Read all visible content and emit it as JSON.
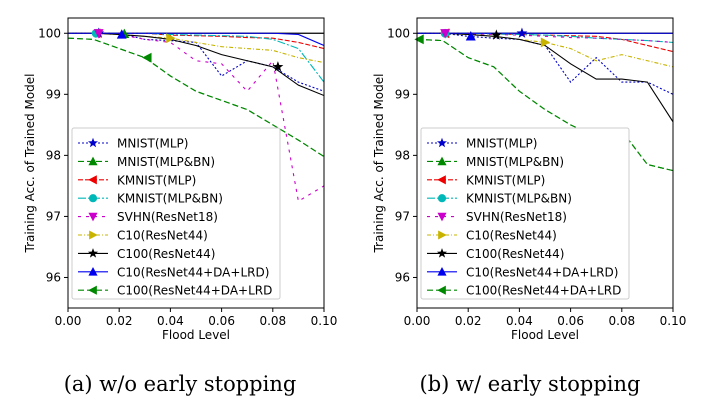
{
  "chart_data": [
    {
      "type": "line",
      "caption": "(a) w/o early stopping",
      "xlabel": "Flood Level",
      "ylabel": "Training Acc. of Trained Model",
      "xlim": [
        0,
        0.1
      ],
      "ylim": [
        95.5,
        100.25
      ],
      "xticks": [
        "0.00",
        "0.02",
        "0.04",
        "0.06",
        "0.08",
        "0.10"
      ],
      "yticks": [
        "96",
        "97",
        "98",
        "99",
        "100"
      ],
      "reference_line": 100,
      "legend_position": "lower-left",
      "series": [
        {
          "name": "MNIST(MLP)",
          "color": "#0000cc",
          "dash": "2,2",
          "marker": "star",
          "x": [
            0,
            0.01,
            0.02,
            0.03,
            0.04,
            0.05,
            0.06,
            0.07,
            0.08,
            0.09,
            0.1
          ],
          "y": [
            100,
            100,
            100,
            99.9,
            99.88,
            99.85,
            99.3,
            99.55,
            99.45,
            99.2,
            99.05
          ]
        },
        {
          "name": "MNIST(MLP&BN)",
          "color": "#008800",
          "dash": "6,3",
          "marker": "triangle-up",
          "x": [
            0,
            0.01,
            0.02,
            0.03,
            0.04,
            0.05,
            0.06,
            0.07,
            0.08,
            0.09,
            0.1
          ],
          "y": [
            99.92,
            99.9,
            99.75,
            99.6,
            99.3,
            99.05,
            98.9,
            98.75,
            98.5,
            98.25,
            97.98
          ]
        },
        {
          "name": "KMNIST(MLP)",
          "color": "#ee0000",
          "dash": "5,2",
          "marker": "triangle-left",
          "x": [
            0,
            0.01,
            0.02,
            0.03,
            0.04,
            0.05,
            0.06,
            0.07,
            0.08,
            0.09,
            0.1
          ],
          "y": [
            100,
            100,
            100,
            100,
            99.97,
            99.96,
            99.95,
            99.93,
            99.92,
            99.85,
            99.75
          ]
        },
        {
          "name": "KMNIST(MLP&BN)",
          "color": "#00b8b8",
          "dash": "8,2,2,2",
          "marker": "circle",
          "x": [
            0,
            0.01,
            0.02,
            0.03,
            0.04,
            0.05,
            0.06,
            0.07,
            0.08,
            0.09,
            0.1
          ],
          "y": [
            100,
            100,
            100,
            100,
            99.98,
            99.97,
            99.96,
            99.95,
            99.9,
            99.75,
            99.2
          ]
        },
        {
          "name": "SVHN(ResNet18)",
          "color": "#cc00cc",
          "dash": "3,5",
          "marker": "triangle-down",
          "x": [
            0,
            0.01,
            0.02,
            0.03,
            0.04,
            0.05,
            0.06,
            0.07,
            0.08,
            0.09,
            0.1
          ],
          "y": [
            100,
            100,
            99.98,
            99.9,
            99.85,
            99.55,
            99.5,
            99.05,
            99.55,
            97.25,
            97.5
          ]
        },
        {
          "name": "C10(ResNet44)",
          "color": "#c8b400",
          "dash": "4,2,1,2",
          "marker": "triangle-right",
          "x": [
            0,
            0.01,
            0.02,
            0.03,
            0.04,
            0.05,
            0.06,
            0.07,
            0.08,
            0.09,
            0.1
          ],
          "y": [
            100,
            100,
            99.98,
            99.95,
            99.92,
            99.85,
            99.78,
            99.75,
            99.72,
            99.6,
            99.52
          ]
        },
        {
          "name": "C100(ResNet44)",
          "color": "#000000",
          "dash": "",
          "marker": "star",
          "x": [
            0,
            0.01,
            0.02,
            0.03,
            0.04,
            0.05,
            0.06,
            0.07,
            0.08,
            0.09,
            0.1
          ],
          "y": [
            100,
            100,
            99.98,
            99.95,
            99.9,
            99.8,
            99.65,
            99.55,
            99.45,
            99.15,
            98.98
          ]
        },
        {
          "name": "C10(ResNet44+DA+LRD)",
          "color": "#0000ee",
          "dash": "",
          "marker": "triangle-up",
          "x": [
            0,
            0.01,
            0.02,
            0.03,
            0.04,
            0.05,
            0.06,
            0.07,
            0.08,
            0.09,
            0.1
          ],
          "y": [
            100,
            100,
            100,
            100,
            100,
            100,
            100,
            100,
            100,
            99.98,
            99.8
          ]
        },
        {
          "name": "C100(ResNet44+DA+LRD",
          "color": "#008800",
          "dash": "6,3",
          "marker": "triangle-left",
          "x": [
            0,
            0.01,
            0.02,
            0.03,
            0.04,
            0.05,
            0.06,
            0.07,
            0.08,
            0.09,
            0.1
          ],
          "y": [
            99.92,
            99.9,
            99.75,
            99.6,
            99.3,
            99.05,
            98.9,
            98.75,
            98.5,
            98.25,
            97.98
          ]
        }
      ],
      "markers": [
        {
          "series": 0,
          "x": 0.012,
          "y": 100
        },
        {
          "series": 1,
          "x": 0.022,
          "y": 99.99
        },
        {
          "series": 2,
          "x": 0.011,
          "y": 100
        },
        {
          "series": 3,
          "x": 0.011,
          "y": 100
        },
        {
          "series": 4,
          "x": 0.012,
          "y": 100
        },
        {
          "series": 5,
          "x": 0.04,
          "y": 99.92
        },
        {
          "series": 6,
          "x": 0.082,
          "y": 99.45
        },
        {
          "series": 7,
          "x": 0.021,
          "y": 99.98
        },
        {
          "series": 8,
          "x": 0.031,
          "y": 99.6
        }
      ]
    },
    {
      "type": "line",
      "caption": "(b) w/ early stopping",
      "xlabel": "Flood Level",
      "ylabel": "Training Acc. of Trained Model",
      "xlim": [
        0,
        0.1
      ],
      "ylim": [
        95.5,
        100.25
      ],
      "xticks": [
        "0.00",
        "0.02",
        "0.04",
        "0.06",
        "0.08",
        "0.10"
      ],
      "yticks": [
        "96",
        "97",
        "98",
        "99",
        "100"
      ],
      "reference_line": 100,
      "legend_position": "lower-left",
      "series": [
        {
          "name": "MNIST(MLP)",
          "color": "#0000cc",
          "dash": "2,2",
          "marker": "star",
          "x": [
            0,
            0.01,
            0.02,
            0.03,
            0.04,
            0.05,
            0.06,
            0.07,
            0.08,
            0.09,
            0.1
          ],
          "y": [
            100,
            100,
            99.95,
            99.92,
            99.9,
            99.8,
            99.2,
            99.6,
            99.2,
            99.2,
            99.0
          ]
        },
        {
          "name": "MNIST(MLP&BN)",
          "color": "#008800",
          "dash": "6,3",
          "marker": "triangle-up",
          "x": [
            0,
            0.01,
            0.02,
            0.03,
            0.04,
            0.05,
            0.06,
            0.07,
            0.08,
            0.09,
            0.1
          ],
          "y": [
            99.9,
            99.88,
            99.6,
            99.45,
            99.05,
            98.75,
            98.5,
            98.3,
            98.4,
            97.85,
            97.75
          ]
        },
        {
          "name": "KMNIST(MLP)",
          "color": "#ee0000",
          "dash": "5,2",
          "marker": "triangle-left",
          "x": [
            0,
            0.01,
            0.02,
            0.03,
            0.04,
            0.05,
            0.06,
            0.07,
            0.08,
            0.09,
            0.1
          ],
          "y": [
            100,
            100,
            100,
            99.99,
            99.98,
            99.97,
            99.96,
            99.95,
            99.9,
            99.8,
            99.7
          ]
        },
        {
          "name": "KMNIST(MLP&BN)",
          "color": "#00b8b8",
          "dash": "8,2,2,2",
          "marker": "circle",
          "x": [
            0,
            0.01,
            0.02,
            0.03,
            0.04,
            0.05,
            0.06,
            0.07,
            0.08,
            0.09,
            0.1
          ],
          "y": [
            100,
            100,
            100,
            99.99,
            99.98,
            99.97,
            99.95,
            99.92,
            99.9,
            99.88,
            99.85
          ]
        },
        {
          "name": "SVHN(ResNet18)",
          "color": "#cc00cc",
          "dash": "3,5",
          "marker": "triangle-down",
          "x": [
            0,
            0.01,
            0.02,
            0.03,
            0.04,
            0.05,
            0.06,
            0.07,
            0.08,
            0.09,
            0.1
          ],
          "y": [
            100,
            100,
            99.99,
            99.98,
            99.97,
            99.95,
            99.93,
            99.92,
            99.9,
            99.88,
            99.85
          ]
        },
        {
          "name": "C10(ResNet44)",
          "color": "#c8b400",
          "dash": "4,2,1,2",
          "marker": "triangle-right",
          "x": [
            0,
            0.01,
            0.02,
            0.03,
            0.04,
            0.05,
            0.06,
            0.07,
            0.08,
            0.09,
            0.1
          ],
          "y": [
            100,
            100,
            99.98,
            99.95,
            99.9,
            99.85,
            99.75,
            99.55,
            99.65,
            99.55,
            99.45
          ]
        },
        {
          "name": "C100(ResNet44)",
          "color": "#000000",
          "dash": "",
          "marker": "star",
          "x": [
            0,
            0.01,
            0.02,
            0.03,
            0.04,
            0.05,
            0.06,
            0.07,
            0.08,
            0.09,
            0.1
          ],
          "y": [
            100,
            100,
            99.98,
            99.95,
            99.9,
            99.8,
            99.5,
            99.25,
            99.25,
            99.2,
            98.55
          ]
        },
        {
          "name": "C10(ResNet44+DA+LRD)",
          "color": "#0000ee",
          "dash": "",
          "marker": "triangle-up",
          "x": [
            0,
            0.01,
            0.02,
            0.03,
            0.04,
            0.05,
            0.06,
            0.07,
            0.08,
            0.09,
            0.1
          ],
          "y": [
            100,
            100,
            100,
            100,
            100,
            100,
            100,
            100,
            100,
            100,
            100
          ]
        },
        {
          "name": "C100(ResNet44+DA+LRD",
          "color": "#008800",
          "dash": "6,3",
          "marker": "triangle-left",
          "x": [
            0,
            0.01,
            0.02,
            0.03,
            0.04,
            0.05,
            0.06,
            0.07,
            0.08,
            0.09,
            0.1
          ],
          "y": [
            99.9,
            99.88,
            99.6,
            99.45,
            99.05,
            98.75,
            98.5,
            98.3,
            98.4,
            97.85,
            97.75
          ]
        }
      ],
      "markers": [
        {
          "series": 0,
          "x": 0.041,
          "y": 100
        },
        {
          "series": 1,
          "x": 0.021,
          "y": 99.95
        },
        {
          "series": 2,
          "x": 0.011,
          "y": 100
        },
        {
          "series": 3,
          "x": 0.011,
          "y": 100
        },
        {
          "series": 4,
          "x": 0.011,
          "y": 100
        },
        {
          "series": 5,
          "x": 0.05,
          "y": 99.85
        },
        {
          "series": 6,
          "x": 0.031,
          "y": 99.97
        },
        {
          "series": 7,
          "x": 0.021,
          "y": 99.95
        },
        {
          "series": 8,
          "x": 0.001,
          "y": 99.9
        }
      ]
    }
  ]
}
